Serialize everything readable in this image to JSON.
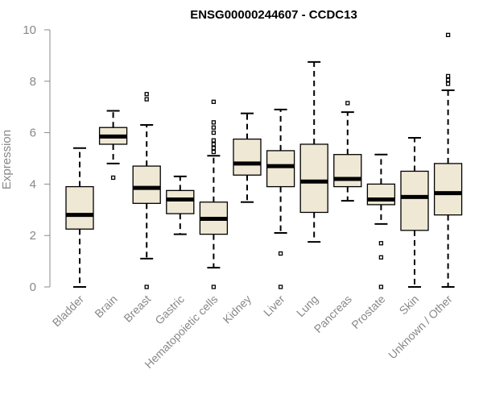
{
  "chart_data": {
    "type": "boxplot",
    "title": "ENSG00000244607 - CCDC13",
    "xlabel": "",
    "ylabel": "Expression",
    "ylim": [
      0,
      10
    ],
    "yticks": [
      "0",
      "2",
      "4",
      "6",
      "8",
      "10"
    ],
    "categories": [
      "Bladder",
      "Brain",
      "Breast",
      "Gastric",
      "Hematopoietic cells",
      "Kidney",
      "Liver",
      "Lung",
      "Pancreas",
      "Prostate",
      "Skin",
      "Unknown / Other"
    ],
    "boxes": [
      {
        "min": 0.0,
        "q1": 2.25,
        "median": 2.8,
        "q3": 3.9,
        "max": 5.4,
        "outliers": []
      },
      {
        "min": 4.8,
        "q1": 5.55,
        "median": 5.85,
        "q3": 6.2,
        "max": 6.85,
        "outliers": [
          4.25
        ]
      },
      {
        "min": 1.1,
        "q1": 3.25,
        "median": 3.85,
        "q3": 4.7,
        "max": 6.3,
        "outliers": [
          0.0,
          7.3,
          7.5
        ]
      },
      {
        "min": 2.05,
        "q1": 2.85,
        "median": 3.4,
        "q3": 3.75,
        "max": 4.3,
        "outliers": []
      },
      {
        "min": 0.75,
        "q1": 2.05,
        "median": 2.65,
        "q3": 3.3,
        "max": 5.1,
        "outliers": [
          0.0,
          5.25,
          5.4,
          5.55,
          5.7,
          6.0,
          6.2,
          6.4,
          7.2
        ]
      },
      {
        "min": 3.3,
        "q1": 4.35,
        "median": 4.8,
        "q3": 5.75,
        "max": 6.75,
        "outliers": []
      },
      {
        "min": 2.1,
        "q1": 3.9,
        "median": 4.7,
        "q3": 5.3,
        "max": 6.9,
        "outliers": [
          0.0,
          1.3
        ]
      },
      {
        "min": 1.75,
        "q1": 2.9,
        "median": 4.1,
        "q3": 5.55,
        "max": 8.75,
        "outliers": []
      },
      {
        "min": 3.35,
        "q1": 3.9,
        "median": 4.2,
        "q3": 5.15,
        "max": 6.8,
        "outliers": [
          7.15
        ]
      },
      {
        "min": 2.45,
        "q1": 3.2,
        "median": 3.4,
        "q3": 4.0,
        "max": 5.15,
        "outliers": [
          0.0,
          1.15,
          1.7
        ]
      },
      {
        "min": 0.0,
        "q1": 2.2,
        "median": 3.5,
        "q3": 4.5,
        "max": 5.8,
        "outliers": []
      },
      {
        "min": 0.0,
        "q1": 2.8,
        "median": 3.65,
        "q3": 4.8,
        "max": 7.65,
        "outliers": [
          7.9,
          8.05,
          8.2,
          9.8
        ]
      }
    ],
    "colors": {
      "box_fill": "#efe8d4",
      "stroke": "#000000",
      "axis": "#888888"
    }
  }
}
